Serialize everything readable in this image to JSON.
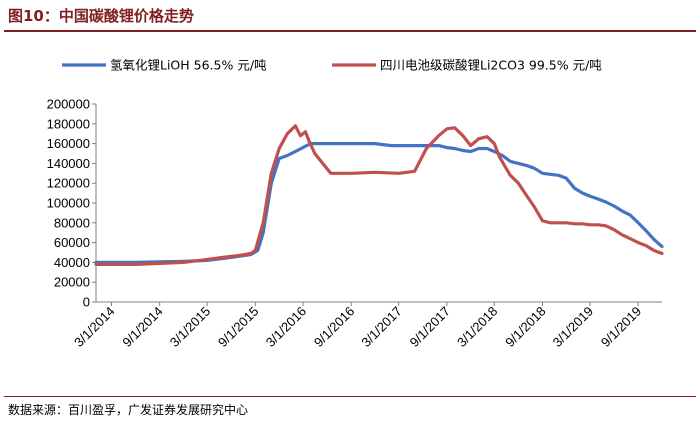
{
  "header": {
    "title": "图10：中国碳酸锂价格走势"
  },
  "footer": {
    "source": "数据来源：百川盈孚，广发证券发展研究中心"
  },
  "chart_data": {
    "type": "line",
    "title": "图10：中国碳酸锂价格走势",
    "xlabel": "",
    "ylabel": "",
    "ylim": [
      0,
      200000
    ],
    "y_ticks": [
      "0",
      "20000",
      "40000",
      "60000",
      "80000",
      "100000",
      "120000",
      "140000",
      "160000",
      "180000",
      "200000"
    ],
    "x_ticks": [
      "3/1/2014",
      "9/1/2014",
      "3/1/2015",
      "9/1/2015",
      "3/1/2016",
      "9/1/2016",
      "3/1/2017",
      "9/1/2017",
      "3/1/2018",
      "9/1/2018",
      "3/1/2019",
      "9/1/2019"
    ],
    "x_range": [
      "2014-01-01",
      "2019-12-01"
    ],
    "legend_position": "top",
    "grid": false,
    "series": [
      {
        "name": "氢氧化锂LiOH 56.5% 元/吨",
        "color": "#4472c4",
        "x": [
          "2014-01-01",
          "2014-06-01",
          "2014-12-01",
          "2015-03-01",
          "2015-06-01",
          "2015-08-15",
          "2015-09-10",
          "2015-10-01",
          "2015-11-01",
          "2015-12-01",
          "2016-01-01",
          "2016-02-01",
          "2016-03-15",
          "2016-04-01",
          "2016-05-01",
          "2016-08-01",
          "2016-12-01",
          "2017-02-01",
          "2017-04-01",
          "2017-06-01",
          "2017-08-01",
          "2017-09-01",
          "2017-10-01",
          "2017-11-01",
          "2017-12-01",
          "2018-01-01",
          "2018-02-01",
          "2018-03-01",
          "2018-04-01",
          "2018-05-01",
          "2018-06-01",
          "2018-07-01",
          "2018-08-01",
          "2018-09-01",
          "2018-10-01",
          "2018-11-01",
          "2018-12-01",
          "2019-01-01",
          "2019-02-01",
          "2019-03-01",
          "2019-04-01",
          "2019-05-01",
          "2019-06-01",
          "2019-07-01",
          "2019-08-01",
          "2019-09-01",
          "2019-10-01",
          "2019-11-01",
          "2019-12-01"
        ],
        "y": [
          40000,
          40000,
          41000,
          42000,
          45000,
          48000,
          52000,
          70000,
          120000,
          145000,
          148000,
          152000,
          158000,
          160000,
          160000,
          160000,
          160000,
          158000,
          158000,
          158000,
          158000,
          156000,
          155000,
          153000,
          152000,
          155000,
          155000,
          152000,
          148000,
          142000,
          140000,
          138000,
          135000,
          130000,
          129000,
          128000,
          125000,
          115000,
          110000,
          107000,
          104000,
          101000,
          97000,
          92000,
          88000,
          80000,
          72000,
          63000,
          56000
        ]
      },
      {
        "name": "四川电池级碳酸锂Li2CO3 99.5% 元/吨",
        "color": "#c0504d",
        "x": [
          "2014-01-01",
          "2014-06-01",
          "2014-12-01",
          "2015-03-01",
          "2015-05-01",
          "2015-07-01",
          "2015-08-15",
          "2015-09-01",
          "2015-10-01",
          "2015-11-01",
          "2015-12-01",
          "2016-01-01",
          "2016-02-01",
          "2016-02-20",
          "2016-03-10",
          "2016-03-25",
          "2016-04-15",
          "2016-05-15",
          "2016-06-15",
          "2016-07-15",
          "2016-09-01",
          "2016-12-01",
          "2017-03-01",
          "2017-05-01",
          "2017-06-15",
          "2017-08-01",
          "2017-09-01",
          "2017-10-01",
          "2017-11-01",
          "2017-12-01",
          "2018-01-01",
          "2018-02-01",
          "2018-03-01",
          "2018-03-20",
          "2018-04-15",
          "2018-05-01",
          "2018-06-01",
          "2018-07-01",
          "2018-08-01",
          "2018-09-01",
          "2018-10-01",
          "2018-11-01",
          "2018-12-01",
          "2019-01-01",
          "2019-02-01",
          "2019-03-01",
          "2019-04-01",
          "2019-05-01",
          "2019-06-01",
          "2019-07-01",
          "2019-08-01",
          "2019-09-01",
          "2019-10-01",
          "2019-11-01",
          "2019-12-01"
        ],
        "y": [
          38000,
          38000,
          40000,
          43000,
          45000,
          47000,
          49000,
          52000,
          80000,
          130000,
          155000,
          170000,
          178000,
          168000,
          172000,
          162000,
          150000,
          140000,
          130000,
          130000,
          130000,
          131000,
          130000,
          132000,
          155000,
          168000,
          175000,
          176000,
          168000,
          158000,
          165000,
          167000,
          160000,
          147000,
          135000,
          128000,
          120000,
          108000,
          96000,
          82000,
          80000,
          80000,
          80000,
          79000,
          79000,
          78000,
          78000,
          77000,
          73000,
          68000,
          64000,
          60000,
          57000,
          52000,
          49000
        ]
      }
    ]
  }
}
